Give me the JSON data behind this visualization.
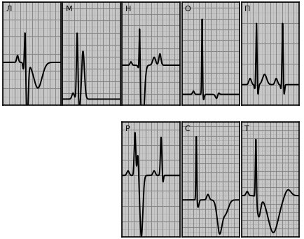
{
  "background": "#ffffff",
  "grid_major_color": "#999999",
  "grid_minor_color": "#cccccc",
  "panel_bg": "#c8c8c8",
  "ecg_color": "#000000",
  "border_color": "#000000",
  "labels": [
    "Л",
    "М",
    "Н",
    "О",
    "П",
    "Р",
    "С",
    "Т"
  ],
  "label_fontsize": 8,
  "lw": 1.4,
  "top_row_labels": [
    "Л",
    "М",
    "Н",
    "О",
    "П"
  ],
  "bot_row_labels": [
    "Р",
    "С",
    "Т"
  ]
}
